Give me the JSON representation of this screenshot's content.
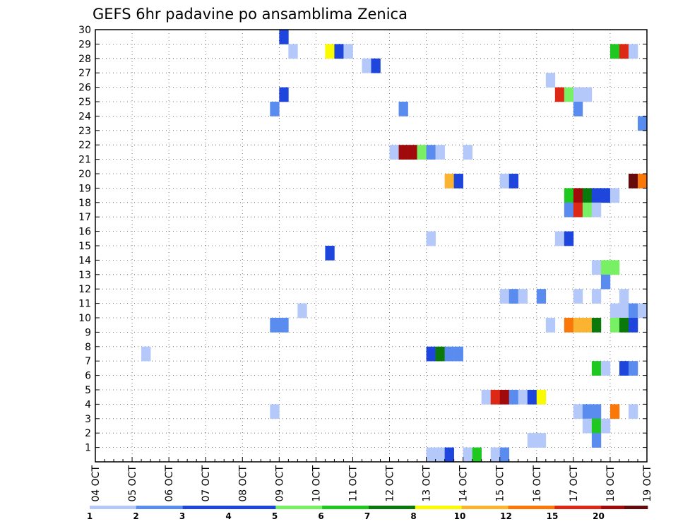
{
  "chart_data": {
    "type": "heatmap",
    "title": "GEFS 6hr padavine po ansamblima Zenica",
    "xlabel": "",
    "ylabel": "",
    "x_tick_labels": [
      "04 OCT",
      "05 OCT",
      "06 OCT",
      "07 OCT",
      "08 OCT",
      "09 OCT",
      "10 OCT",
      "11 OCT",
      "12 OCT",
      "13 OCT",
      "14 OCT",
      "15 OCT",
      "16 OCT",
      "17 OCT",
      "18 OCT",
      "19 OCT"
    ],
    "y_tick_labels": [
      "1",
      "2",
      "3",
      "4",
      "5",
      "6",
      "7",
      "8",
      "9",
      "10",
      "11",
      "12",
      "13",
      "14",
      "15",
      "16",
      "17",
      "18",
      "19",
      "20",
      "21",
      "22",
      "23",
      "24",
      "25",
      "26",
      "27",
      "28",
      "29",
      "30"
    ],
    "x_range_steps": [
      0,
      60
    ],
    "steps_per_day": 4,
    "y_range": [
      0,
      30
    ],
    "grid": true,
    "colorbar": {
      "tick_labels": [
        "1",
        "2",
        "3",
        "4",
        "5",
        "6",
        "7",
        "8",
        "10",
        "12",
        "15",
        "20"
      ],
      "colors": [
        "#b4c8fa",
        "#5a8cf0",
        "#1e46dc",
        "#1e46dc",
        "#78f064",
        "#1ec81e",
        "#0a780a",
        "#fafa00",
        "#fab432",
        "#fa780a",
        "#dc2814",
        "#a00a0a",
        "#640a0a"
      ]
    },
    "cells": [
      {
        "step": 20,
        "member": 29,
        "color": "#1e46dc"
      },
      {
        "step": 21,
        "member": 28,
        "color": "#b4c8fa"
      },
      {
        "step": 25,
        "member": 28,
        "color": "#fafa00"
      },
      {
        "step": 26,
        "member": 28,
        "color": "#1e46dc"
      },
      {
        "step": 27,
        "member": 28,
        "color": "#b4c8fa"
      },
      {
        "step": 56,
        "member": 28,
        "color": "#1ec81e"
      },
      {
        "step": 57,
        "member": 28,
        "color": "#dc2814"
      },
      {
        "step": 58,
        "member": 28,
        "color": "#b4c8fa"
      },
      {
        "step": 29,
        "member": 27,
        "color": "#b4c8fa"
      },
      {
        "step": 30,
        "member": 27,
        "color": "#1e46dc"
      },
      {
        "step": 49,
        "member": 26,
        "color": "#b4c8fa"
      },
      {
        "step": 20,
        "member": 25,
        "color": "#1e46dc"
      },
      {
        "step": 50,
        "member": 25,
        "color": "#dc2814"
      },
      {
        "step": 51,
        "member": 25,
        "color": "#78f064"
      },
      {
        "step": 52,
        "member": 25,
        "color": "#b4c8fa"
      },
      {
        "step": 53,
        "member": 25,
        "color": "#b4c8fa"
      },
      {
        "step": 19,
        "member": 24,
        "color": "#5a8cf0"
      },
      {
        "step": 33,
        "member": 24,
        "color": "#5a8cf0"
      },
      {
        "step": 52,
        "member": 24,
        "color": "#5a8cf0"
      },
      {
        "step": 59,
        "member": 23,
        "color": "#5a8cf0"
      },
      {
        "step": 32,
        "member": 21,
        "color": "#b4c8fa"
      },
      {
        "step": 33,
        "member": 21,
        "color": "#a00a0a"
      },
      {
        "step": 34,
        "member": 21,
        "color": "#a00a0a"
      },
      {
        "step": 35,
        "member": 21,
        "color": "#78f064"
      },
      {
        "step": 36,
        "member": 21,
        "color": "#5a8cf0"
      },
      {
        "step": 37,
        "member": 21,
        "color": "#b4c8fa"
      },
      {
        "step": 40,
        "member": 21,
        "color": "#b4c8fa"
      },
      {
        "step": 38,
        "member": 19,
        "color": "#fab432"
      },
      {
        "step": 39,
        "member": 19,
        "color": "#1e46dc"
      },
      {
        "step": 44,
        "member": 19,
        "color": "#b4c8fa"
      },
      {
        "step": 45,
        "member": 19,
        "color": "#1e46dc"
      },
      {
        "step": 58,
        "member": 19,
        "color": "#640a0a"
      },
      {
        "step": 59,
        "member": 19,
        "color": "#fa780a"
      },
      {
        "step": 51,
        "member": 18,
        "color": "#1ec81e"
      },
      {
        "step": 52,
        "member": 18,
        "color": "#a00a0a"
      },
      {
        "step": 53,
        "member": 18,
        "color": "#0a780a"
      },
      {
        "step": 54,
        "member": 18,
        "color": "#1e46dc"
      },
      {
        "step": 55,
        "member": 18,
        "color": "#1e46dc"
      },
      {
        "step": 56,
        "member": 18,
        "color": "#b4c8fa"
      },
      {
        "step": 51,
        "member": 17,
        "color": "#5a8cf0"
      },
      {
        "step": 52,
        "member": 17,
        "color": "#dc2814"
      },
      {
        "step": 53,
        "member": 17,
        "color": "#78f064"
      },
      {
        "step": 54,
        "member": 17,
        "color": "#b4c8fa"
      },
      {
        "step": 36,
        "member": 15,
        "color": "#b4c8fa"
      },
      {
        "step": 50,
        "member": 15,
        "color": "#b4c8fa"
      },
      {
        "step": 51,
        "member": 15,
        "color": "#1e46dc"
      },
      {
        "step": 25,
        "member": 14,
        "color": "#1e46dc"
      },
      {
        "step": 54,
        "member": 13,
        "color": "#b4c8fa"
      },
      {
        "step": 55,
        "member": 13,
        "color": "#78f064"
      },
      {
        "step": 56,
        "member": 13,
        "color": "#78f064"
      },
      {
        "step": 55,
        "member": 12,
        "color": "#5a8cf0"
      },
      {
        "step": 44,
        "member": 11,
        "color": "#b4c8fa"
      },
      {
        "step": 45,
        "member": 11,
        "color": "#5a8cf0"
      },
      {
        "step": 46,
        "member": 11,
        "color": "#b4c8fa"
      },
      {
        "step": 48,
        "member": 11,
        "color": "#5a8cf0"
      },
      {
        "step": 52,
        "member": 11,
        "color": "#b4c8fa"
      },
      {
        "step": 54,
        "member": 11,
        "color": "#b4c8fa"
      },
      {
        "step": 57,
        "member": 11,
        "color": "#b4c8fa"
      },
      {
        "step": 22,
        "member": 10,
        "color": "#b4c8fa"
      },
      {
        "step": 56,
        "member": 10,
        "color": "#b4c8fa"
      },
      {
        "step": 57,
        "member": 10,
        "color": "#b4c8fa"
      },
      {
        "step": 58,
        "member": 10,
        "color": "#5a8cf0"
      },
      {
        "step": 59,
        "member": 10,
        "color": "#b4c8fa"
      },
      {
        "step": 19,
        "member": 9,
        "color": "#5a8cf0"
      },
      {
        "step": 20,
        "member": 9,
        "color": "#5a8cf0"
      },
      {
        "step": 49,
        "member": 9,
        "color": "#b4c8fa"
      },
      {
        "step": 51,
        "member": 9,
        "color": "#fa780a"
      },
      {
        "step": 52,
        "member": 9,
        "color": "#fab432"
      },
      {
        "step": 53,
        "member": 9,
        "color": "#fab432"
      },
      {
        "step": 54,
        "member": 9,
        "color": "#0a780a"
      },
      {
        "step": 56,
        "member": 9,
        "color": "#78f064"
      },
      {
        "step": 57,
        "member": 9,
        "color": "#0a780a"
      },
      {
        "step": 58,
        "member": 9,
        "color": "#1e46dc"
      },
      {
        "step": 5,
        "member": 7,
        "color": "#b4c8fa"
      },
      {
        "step": 36,
        "member": 7,
        "color": "#1e46dc"
      },
      {
        "step": 37,
        "member": 7,
        "color": "#0a780a"
      },
      {
        "step": 38,
        "member": 7,
        "color": "#5a8cf0"
      },
      {
        "step": 39,
        "member": 7,
        "color": "#5a8cf0"
      },
      {
        "step": 54,
        "member": 6,
        "color": "#1ec81e"
      },
      {
        "step": 55,
        "member": 6,
        "color": "#b4c8fa"
      },
      {
        "step": 57,
        "member": 6,
        "color": "#1e46dc"
      },
      {
        "step": 58,
        "member": 6,
        "color": "#5a8cf0"
      },
      {
        "step": 42,
        "member": 4,
        "color": "#b4c8fa"
      },
      {
        "step": 43,
        "member": 4,
        "color": "#dc2814"
      },
      {
        "step": 44,
        "member": 4,
        "color": "#a00a0a"
      },
      {
        "step": 45,
        "member": 4,
        "color": "#5a8cf0"
      },
      {
        "step": 46,
        "member": 4,
        "color": "#b4c8fa"
      },
      {
        "step": 47,
        "member": 4,
        "color": "#1e46dc"
      },
      {
        "step": 48,
        "member": 4,
        "color": "#fafa00"
      },
      {
        "step": 19,
        "member": 3,
        "color": "#b4c8fa"
      },
      {
        "step": 52,
        "member": 3,
        "color": "#b4c8fa"
      },
      {
        "step": 53,
        "member": 3,
        "color": "#5a8cf0"
      },
      {
        "step": 54,
        "member": 3,
        "color": "#5a8cf0"
      },
      {
        "step": 56,
        "member": 3,
        "color": "#fa780a"
      },
      {
        "step": 58,
        "member": 3,
        "color": "#b4c8fa"
      },
      {
        "step": 53,
        "member": 2,
        "color": "#b4c8fa"
      },
      {
        "step": 54,
        "member": 2,
        "color": "#1ec81e"
      },
      {
        "step": 55,
        "member": 2,
        "color": "#b4c8fa"
      },
      {
        "step": 47,
        "member": 1,
        "color": "#b4c8fa"
      },
      {
        "step": 48,
        "member": 1,
        "color": "#b4c8fa"
      },
      {
        "step": 54,
        "member": 1,
        "color": "#5a8cf0"
      },
      {
        "step": 36,
        "member": 0,
        "color": "#b4c8fa"
      },
      {
        "step": 37,
        "member": 0,
        "color": "#b4c8fa"
      },
      {
        "step": 38,
        "member": 0,
        "color": "#1e46dc"
      },
      {
        "step": 40,
        "member": 0,
        "color": "#b4c8fa"
      },
      {
        "step": 41,
        "member": 0,
        "color": "#1ec81e"
      },
      {
        "step": 43,
        "member": 0,
        "color": "#b4c8fa"
      },
      {
        "step": 44,
        "member": 0,
        "color": "#5a8cf0"
      }
    ]
  }
}
